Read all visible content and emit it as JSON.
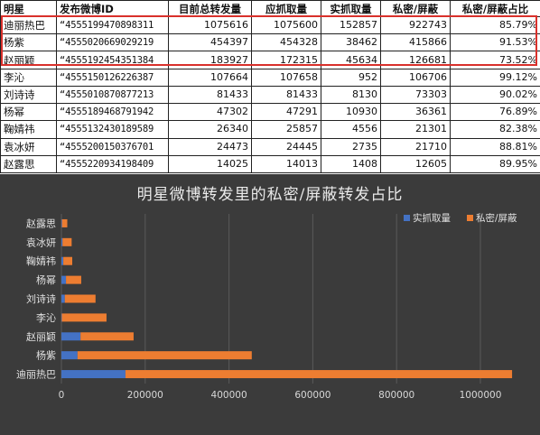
{
  "table": {
    "headers": [
      "明星",
      "发布微博ID",
      "目前总转发量",
      "应抓取量",
      "实抓取量",
      "私密/屏蔽",
      "私密/屏蔽占比"
    ],
    "rows": [
      [
        "迪丽热巴",
        "“4555199470898311",
        "1075616",
        "1075600",
        "152857",
        "922743",
        "85.79%"
      ],
      [
        "杨紫",
        "“4555020669029219",
        "454397",
        "454328",
        "38462",
        "415866",
        "91.53%"
      ],
      [
        "赵丽颖",
        "“4555192454351384",
        "183927",
        "172315",
        "45634",
        "126681",
        "73.52%"
      ],
      [
        "李沁",
        "“4555150126226387",
        "107664",
        "107658",
        "952",
        "106706",
        "99.12%"
      ],
      [
        "刘诗诗",
        "“4555010870877213",
        "81433",
        "81433",
        "8130",
        "73303",
        "90.02%"
      ],
      [
        "杨幂",
        "“4555189468791942",
        "47302",
        "47291",
        "10930",
        "36361",
        "76.89%"
      ],
      [
        "鞠婧祎",
        "“4555132430189589",
        "26340",
        "25857",
        "4556",
        "21301",
        "82.38%"
      ],
      [
        "袁冰妍",
        "“4555200150376701",
        "24473",
        "24445",
        "2735",
        "21710",
        "88.81%"
      ],
      [
        "赵露思",
        "“4555220934198409",
        "14025",
        "14013",
        "1408",
        "12605",
        "89.95%"
      ]
    ],
    "highlight_color": "#d9302b"
  },
  "colors": {
    "series_blue": "#4472c4",
    "series_orange": "#ed7d31",
    "chart_bg": "#3b3b3b"
  },
  "chart_data": {
    "type": "bar",
    "orientation": "horizontal",
    "stacked": true,
    "title": "明星微博转发里的私密/屏蔽转发占比",
    "categories": [
      "迪丽热巴",
      "杨紫",
      "赵丽颖",
      "李沁",
      "刘诗诗",
      "杨幂",
      "鞠婧祎",
      "袁冰妍",
      "赵露思"
    ],
    "series": [
      {
        "name": "实抓取量",
        "values": [
          152857,
          38462,
          45634,
          952,
          8130,
          10930,
          4556,
          2735,
          1408
        ]
      },
      {
        "name": "私密/屏蔽",
        "values": [
          922743,
          415866,
          126681,
          106706,
          73303,
          36361,
          21301,
          21710,
          12605
        ]
      }
    ],
    "xlim": [
      0,
      1000000
    ],
    "x_ticks": [
      0,
      200000,
      400000,
      600000,
      800000,
      1000000
    ],
    "grid": true,
    "legend_position": "top-right"
  }
}
